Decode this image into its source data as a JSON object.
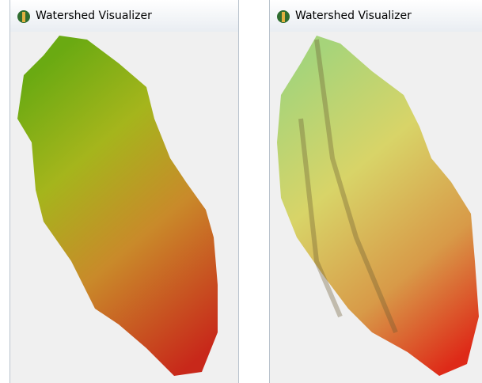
{
  "windows": [
    {
      "title": "Watershed Visualizer"
    },
    {
      "title": "Watershed Visualizer"
    }
  ]
}
